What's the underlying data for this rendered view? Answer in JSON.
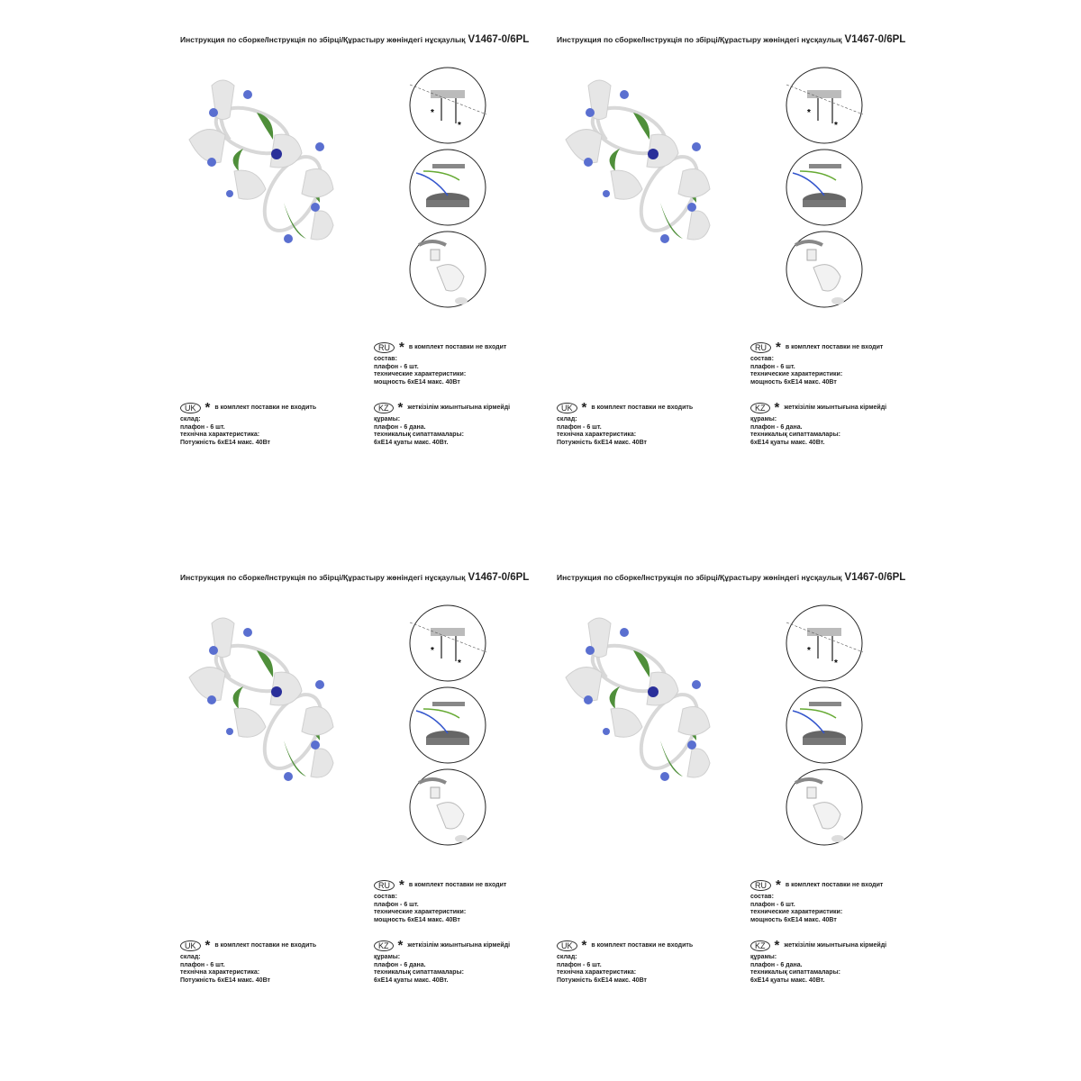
{
  "title": {
    "text": "Инструкция по сборке/Інструкція по збірці/Құрастыру жөніндегі нұсқаулық",
    "model": "V1467-0/6PL"
  },
  "ru": {
    "badge": "RU",
    "note": "в комплект поставки не входит",
    "lines": [
      "состав:",
      "плафон - 6 шт.",
      "технические характеристики:",
      "мощность 6хЕ14 макс. 40Вт"
    ]
  },
  "uk": {
    "badge": "UK",
    "note": "в комплект поставки не входить",
    "lines": [
      "склад:",
      "плафон - 6 шт.",
      "технічна характеристика:",
      "Потужність 6хЕ14 макс. 40Вт"
    ]
  },
  "kz": {
    "badge": "KZ",
    "note": "жеткізілім жиынтығына кірмейді",
    "lines": [
      "құрамы:",
      "плафон - 6 дана.",
      "техникалық сипаттамалары:",
      "6хЕ14 қуаты макс. 40Вт."
    ]
  },
  "colors": {
    "flower": "#5a6fd0",
    "leaf": "#4f8f3a",
    "shade": "#e4e4e4"
  },
  "icons": [
    "asterisk-icon",
    "mounting-bracket-icon",
    "wiring-icon",
    "bulb-shade-icon"
  ]
}
